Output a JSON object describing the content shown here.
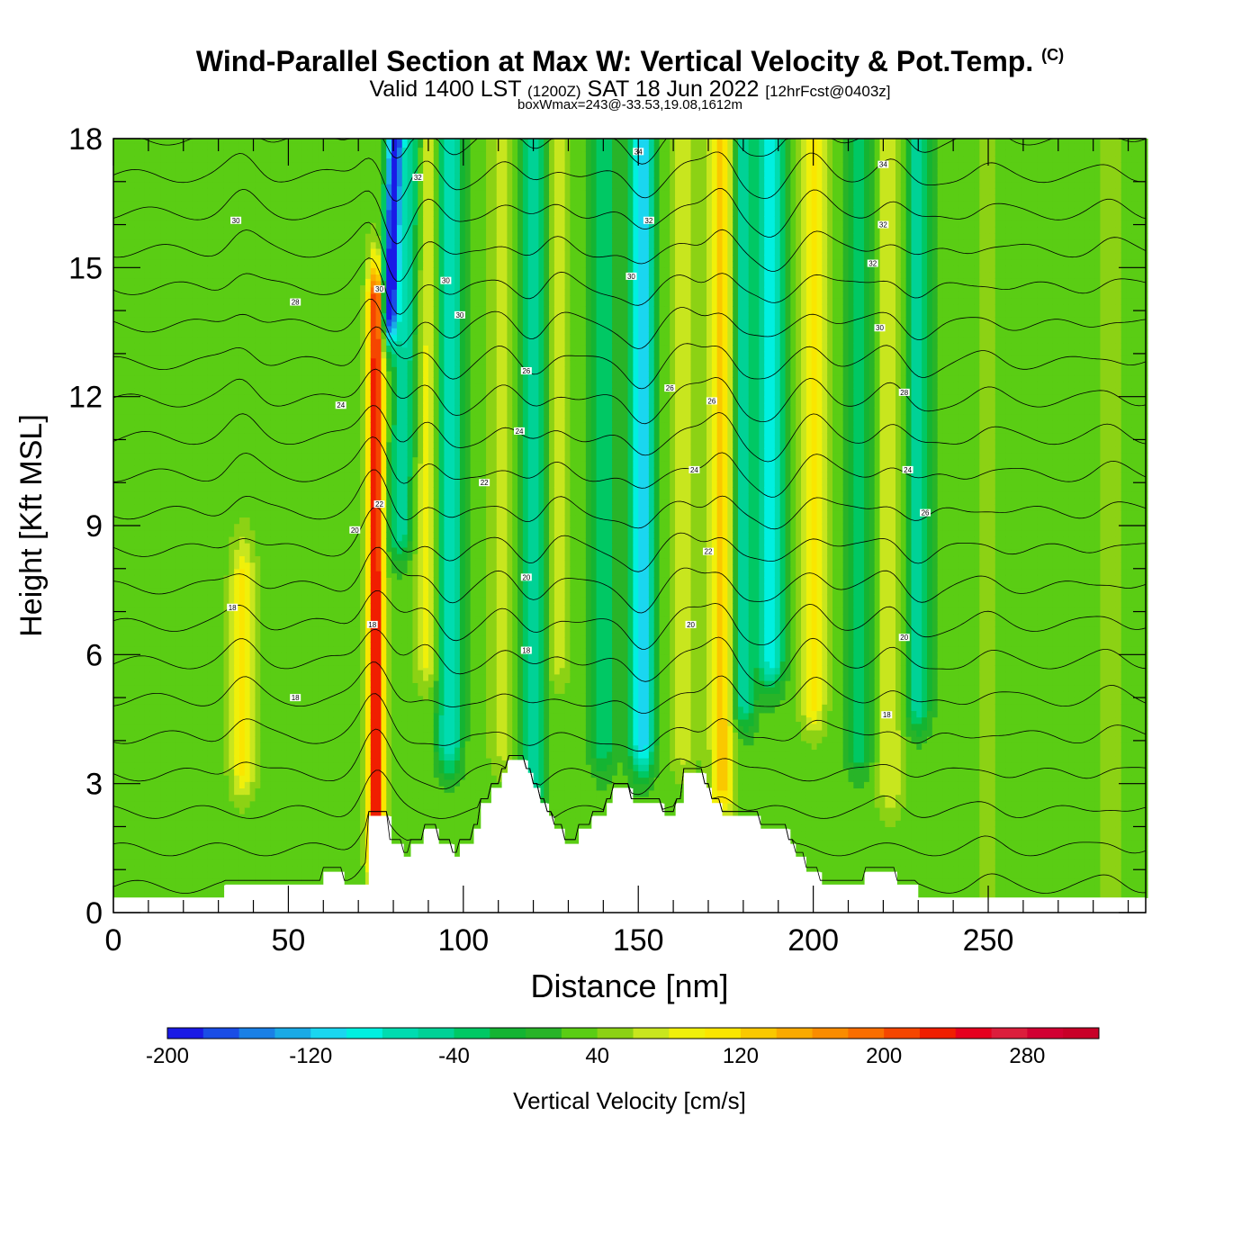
{
  "title": {
    "main": "Wind-Parallel Section at Max W: Vertical Velocity & Pot.Temp.",
    "copyright": "(C)",
    "valid_prefix": "Valid 1400 LST",
    "valid_utc": "(1200Z)",
    "valid_date": "SAT 18 Jun 2022",
    "forecast": "[12hrFcst@0403z]",
    "boxwmax": "boxWmax=243@-33.53,19.08,1612m"
  },
  "chart_data": {
    "type": "heatmap",
    "xlabel": "Distance [nm]",
    "ylabel": "Height [Kft MSL]",
    "xlim": [
      0,
      295
    ],
    "ylim": [
      0,
      18
    ],
    "xticks": [
      0,
      50,
      100,
      150,
      200,
      250
    ],
    "yticks": [
      0,
      3,
      6,
      9,
      12,
      15,
      18
    ],
    "background_value": 30,
    "w_columns": [
      {
        "x": 37,
        "peak": 110,
        "bottom": 3.5,
        "top": 7.5
      },
      {
        "x": 75,
        "peak": 243,
        "bottom": 1.5,
        "top": 14
      },
      {
        "x": 79,
        "peak": -200,
        "bottom": 14,
        "top": 18
      },
      {
        "x": 82,
        "peak": -60,
        "bottom": 9,
        "top": 18
      },
      {
        "x": 90,
        "peak": 90,
        "bottom": 6,
        "top": 18
      },
      {
        "x": 96,
        "peak": -80,
        "bottom": 4,
        "top": 18
      },
      {
        "x": 111,
        "peak": 70,
        "bottom": 4,
        "top": 18
      },
      {
        "x": 120,
        "peak": -60,
        "bottom": 3,
        "top": 18
      },
      {
        "x": 127,
        "peak": 70,
        "bottom": 6,
        "top": 18
      },
      {
        "x": 140,
        "peak": -40,
        "bottom": 4,
        "top": 18
      },
      {
        "x": 151,
        "peak": -120,
        "bottom": 4,
        "top": 18
      },
      {
        "x": 163,
        "peak": 80,
        "bottom": 4,
        "top": 18
      },
      {
        "x": 174,
        "peak": 130,
        "bottom": 3,
        "top": 18
      },
      {
        "x": 180,
        "peak": -60,
        "bottom": 5,
        "top": 18
      },
      {
        "x": 188,
        "peak": -100,
        "bottom": 6,
        "top": 18
      },
      {
        "x": 200,
        "peak": 110,
        "bottom": 5,
        "top": 18
      },
      {
        "x": 213,
        "peak": -40,
        "bottom": 4,
        "top": 18
      },
      {
        "x": 222,
        "peak": 80,
        "bottom": 3,
        "top": 18
      },
      {
        "x": 230,
        "peak": -60,
        "bottom": 5,
        "top": 18
      },
      {
        "x": 250,
        "peak": 45,
        "bottom": 0,
        "top": 18
      },
      {
        "x": 285,
        "peak": 50,
        "bottom": 0,
        "top": 18
      }
    ],
    "terrain": [
      [
        0,
        0.35
      ],
      [
        32,
        0.35
      ],
      [
        32,
        0.65
      ],
      [
        60,
        0.65
      ],
      [
        60,
        0.95
      ],
      [
        66,
        0.95
      ],
      [
        66,
        0.65
      ],
      [
        73,
        0.65
      ],
      [
        73,
        2.25
      ],
      [
        79,
        2.25
      ],
      [
        79,
        1.6
      ],
      [
        83,
        1.6
      ],
      [
        83,
        1.3
      ],
      [
        85,
        1.3
      ],
      [
        85,
        1.6
      ],
      [
        89,
        1.6
      ],
      [
        89,
        1.95
      ],
      [
        93,
        1.95
      ],
      [
        93,
        1.6
      ],
      [
        97,
        1.6
      ],
      [
        97,
        1.3
      ],
      [
        99,
        1.3
      ],
      [
        99,
        1.6
      ],
      [
        103,
        1.6
      ],
      [
        103,
        1.95
      ],
      [
        105,
        1.95
      ],
      [
        105,
        2.55
      ],
      [
        108,
        2.55
      ],
      [
        108,
        2.9
      ],
      [
        111,
        2.9
      ],
      [
        111,
        3.25
      ],
      [
        113,
        3.25
      ],
      [
        113,
        3.55
      ],
      [
        118,
        3.55
      ],
      [
        118,
        3.25
      ],
      [
        120,
        3.25
      ],
      [
        120,
        2.9
      ],
      [
        122,
        2.9
      ],
      [
        122,
        2.55
      ],
      [
        124,
        2.55
      ],
      [
        124,
        2.25
      ],
      [
        126,
        2.25
      ],
      [
        126,
        1.95
      ],
      [
        129,
        1.95
      ],
      [
        129,
        1.6
      ],
      [
        133,
        1.6
      ],
      [
        133,
        1.95
      ],
      [
        137,
        1.95
      ],
      [
        137,
        2.25
      ],
      [
        141,
        2.25
      ],
      [
        141,
        2.55
      ],
      [
        143,
        2.55
      ],
      [
        143,
        2.9
      ],
      [
        148,
        2.9
      ],
      [
        148,
        2.55
      ],
      [
        157,
        2.55
      ],
      [
        157,
        2.25
      ],
      [
        161,
        2.25
      ],
      [
        161,
        2.55
      ],
      [
        163,
        2.55
      ],
      [
        163,
        3.25
      ],
      [
        169,
        3.25
      ],
      [
        169,
        2.9
      ],
      [
        171,
        2.9
      ],
      [
        171,
        2.55
      ],
      [
        174,
        2.55
      ],
      [
        174,
        2.25
      ],
      [
        185,
        2.25
      ],
      [
        185,
        1.95
      ],
      [
        193,
        1.95
      ],
      [
        193,
        1.6
      ],
      [
        195,
        1.6
      ],
      [
        195,
        1.3
      ],
      [
        198,
        1.3
      ],
      [
        198,
        0.95
      ],
      [
        202,
        0.95
      ],
      [
        202,
        0.65
      ],
      [
        215,
        0.65
      ],
      [
        215,
        0.95
      ],
      [
        224,
        0.95
      ],
      [
        224,
        0.65
      ],
      [
        230,
        0.65
      ],
      [
        230,
        0.35
      ],
      [
        295,
        0.35
      ]
    ],
    "theta_levels": [
      16,
      17,
      18,
      19,
      20,
      21,
      22,
      23,
      24,
      25,
      26,
      27,
      28,
      29,
      30,
      31,
      32,
      33,
      34,
      35,
      36
    ],
    "contour_labels": [
      {
        "x": 34,
        "y": 7.1,
        "text": "18"
      },
      {
        "x": 52,
        "y": 5.0,
        "text": "18"
      },
      {
        "x": 69,
        "y": 8.9,
        "text": "20"
      },
      {
        "x": 65,
        "y": 11.8,
        "text": "24"
      },
      {
        "x": 52,
        "y": 14.2,
        "text": "28"
      },
      {
        "x": 35,
        "y": 16.1,
        "text": "30"
      },
      {
        "x": 74,
        "y": 6.7,
        "text": "18"
      },
      {
        "x": 76,
        "y": 9.5,
        "text": "22"
      },
      {
        "x": 76,
        "y": 14.5,
        "text": "30"
      },
      {
        "x": 87,
        "y": 17.1,
        "text": "32"
      },
      {
        "x": 95,
        "y": 14.7,
        "text": "30"
      },
      {
        "x": 99,
        "y": 13.9,
        "text": "30"
      },
      {
        "x": 106,
        "y": 10.0,
        "text": "22"
      },
      {
        "x": 118,
        "y": 12.6,
        "text": "26"
      },
      {
        "x": 116,
        "y": 11.2,
        "text": "24"
      },
      {
        "x": 118,
        "y": 7.8,
        "text": "20"
      },
      {
        "x": 118,
        "y": 6.1,
        "text": "18"
      },
      {
        "x": 148,
        "y": 14.8,
        "text": "30"
      },
      {
        "x": 150,
        "y": 17.7,
        "text": "34"
      },
      {
        "x": 153,
        "y": 16.1,
        "text": "32"
      },
      {
        "x": 159,
        "y": 12.2,
        "text": "26"
      },
      {
        "x": 165,
        "y": 6.7,
        "text": "20"
      },
      {
        "x": 166,
        "y": 10.3,
        "text": "24"
      },
      {
        "x": 170,
        "y": 8.4,
        "text": "22"
      },
      {
        "x": 171,
        "y": 11.9,
        "text": "26"
      },
      {
        "x": 220,
        "y": 17.4,
        "text": "34"
      },
      {
        "x": 220,
        "y": 16.0,
        "text": "32"
      },
      {
        "x": 217,
        "y": 15.1,
        "text": "32"
      },
      {
        "x": 219,
        "y": 13.6,
        "text": "30"
      },
      {
        "x": 226,
        "y": 12.1,
        "text": "28"
      },
      {
        "x": 227,
        "y": 10.3,
        "text": "24"
      },
      {
        "x": 232,
        "y": 9.3,
        "text": "26"
      },
      {
        "x": 226,
        "y": 6.4,
        "text": "20"
      },
      {
        "x": 221,
        "y": 4.6,
        "text": "18"
      }
    ],
    "colorbar": {
      "label": "Vertical Velocity [cm/s]",
      "min": -200,
      "max": 320,
      "step": 20,
      "ticks": [
        -200,
        -120,
        -40,
        40,
        120,
        200,
        280
      ],
      "tick_labels": [
        "-200",
        "-120",
        "-40",
        "40",
        "120",
        "200",
        "280"
      ],
      "colors": [
        "#1a1ae6",
        "#1a4de6",
        "#1a80e6",
        "#1aaae6",
        "#1ad6f0",
        "#00f0e0",
        "#00dcb0",
        "#00d296",
        "#00c864",
        "#14b432",
        "#28b428",
        "#5acd14",
        "#8cd214",
        "#c8e61e",
        "#f0f00a",
        "#fae600",
        "#fac800",
        "#faaa00",
        "#fa8c00",
        "#fa6e00",
        "#f54600",
        "#f01e00",
        "#e6001e",
        "#dc1e3c",
        "#d20032",
        "#c80028"
      ]
    }
  }
}
